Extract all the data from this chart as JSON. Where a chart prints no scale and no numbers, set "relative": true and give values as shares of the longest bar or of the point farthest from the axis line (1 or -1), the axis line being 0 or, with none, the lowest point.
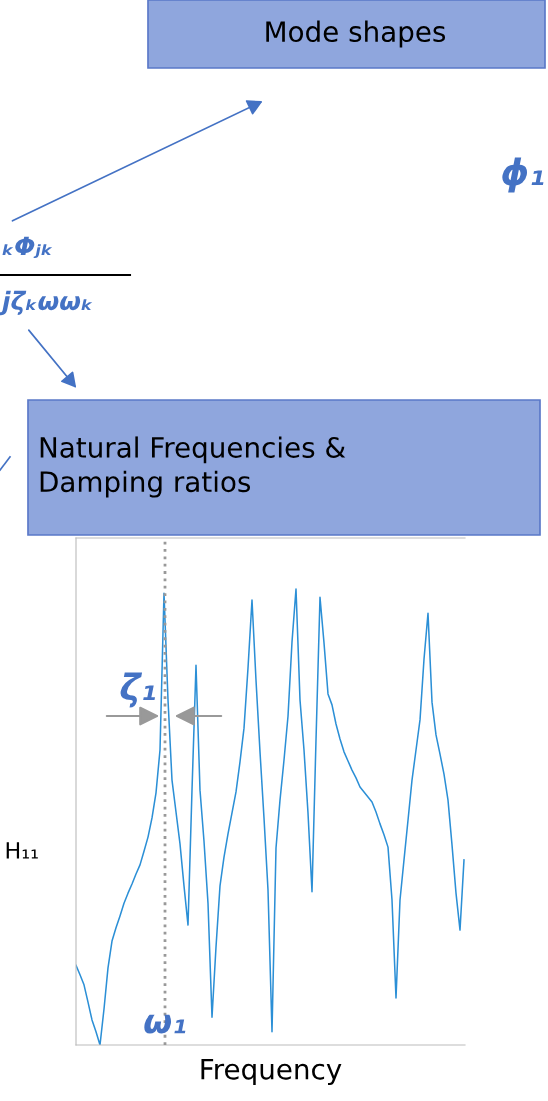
{
  "chart_data": {
    "type": "line",
    "relative": true,
    "xlabel": "Frequency",
    "ylabel": "H₁₁",
    "categories": [
      null,
      null,
      null,
      null,
      null,
      null,
      null,
      null,
      null,
      null,
      null,
      null,
      null,
      null,
      null,
      null,
      null,
      null,
      null,
      null,
      null,
      null,
      null,
      null,
      null,
      null,
      null,
      null,
      null,
      null,
      null,
      null,
      null,
      null,
      null,
      null,
      null,
      null,
      null,
      null,
      null,
      null,
      null,
      null,
      null,
      null,
      null,
      null,
      null,
      null,
      null,
      null,
      null,
      null,
      null,
      null,
      null,
      null,
      null,
      null,
      null,
      null,
      null,
      null,
      null,
      null,
      null,
      null,
      null,
      null,
      null,
      null,
      null,
      null,
      null,
      null,
      null,
      null,
      null,
      null,
      null,
      null,
      null,
      null,
      null,
      null,
      null,
      null,
      null,
      null,
      null,
      null,
      null,
      null,
      null,
      null,
      null,
      null
    ],
    "series": [
      {
        "color": "#2b8fd6",
        "values": [
          0.175,
          0.154,
          0.132,
          0.094,
          0.055,
          0.029,
          0,
          0.079,
          0.169,
          0.228,
          0.257,
          0.283,
          0.311,
          0.333,
          0.353,
          0.375,
          0.395,
          0.425,
          0.456,
          0.498,
          0.553,
          0.647,
          0.991,
          0.757,
          0.581,
          0.511,
          0.441,
          0.349,
          0.263,
          0.559,
          0.833,
          0.559,
          0.447,
          0.311,
          0.061,
          0.215,
          0.349,
          0.412,
          0.463,
          0.509,
          0.555,
          0.621,
          0.695,
          0.827,
          0.976,
          0.8,
          0.643,
          0.498,
          0.34,
          0.029,
          0.432,
          0.537,
          0.625,
          0.721,
          0.884,
          1.0,
          0.757,
          0.647,
          0.509,
          0.336,
          0.669,
          0.982,
          0.882,
          0.77,
          0.746,
          0.704,
          0.671,
          0.643,
          0.623,
          0.603,
          0.586,
          0.566,
          0.555,
          0.544,
          0.533,
          0.511,
          0.485,
          0.461,
          0.434,
          0.318,
          0.103,
          0.318,
          0.406,
          0.493,
          0.581,
          0.647,
          0.713,
          0.846,
          0.947,
          0.752,
          0.68,
          0.638,
          0.594,
          0.537,
          0.439,
          0.333,
          0.252,
          0.406
        ]
      }
    ],
    "annotations": [
      "ζ₁",
      "Mode shapes",
      "Natural Frequencies &\nDamping ratios",
      "ϕ₁",
      "ₖΦⱼₖ",
      "jζₖωωₖ",
      "ω₁"
    ]
  }
}
